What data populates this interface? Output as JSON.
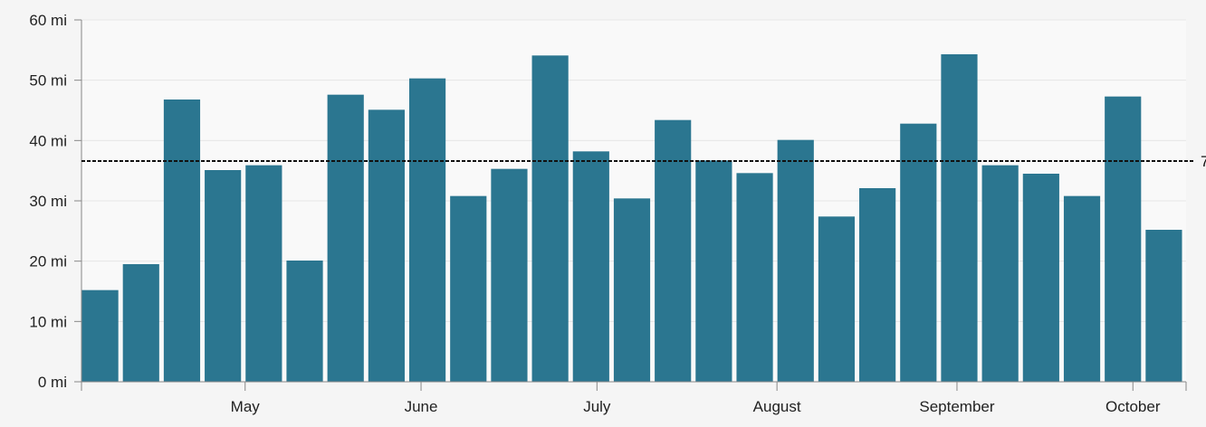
{
  "chart_data": {
    "type": "bar",
    "unit": "mi",
    "color": "#2b7690",
    "y_ticks": [
      "0 mi",
      "10 mi",
      "20 mi",
      "30 mi",
      "40 mi",
      "50 mi",
      "60 mi"
    ],
    "ylim": [
      0,
      60
    ],
    "grid": true,
    "values": [
      15.2,
      19.5,
      46.8,
      35.1,
      35.9,
      20.1,
      47.6,
      45.1,
      50.3,
      30.8,
      35.3,
      54.1,
      38.2,
      30.4,
      43.4,
      36.7,
      34.6,
      40.1,
      27.4,
      32.1,
      42.8,
      54.3,
      35.9,
      34.5,
      30.8,
      47.3,
      25.2
    ],
    "x_tick_labels": [
      "May",
      "June",
      "July",
      "August",
      "September",
      "October"
    ],
    "x_tick_positions": [
      4,
      8.3,
      12.6,
      17,
      21.4,
      25.7
    ],
    "average": 36.6,
    "average_label": "7"
  }
}
